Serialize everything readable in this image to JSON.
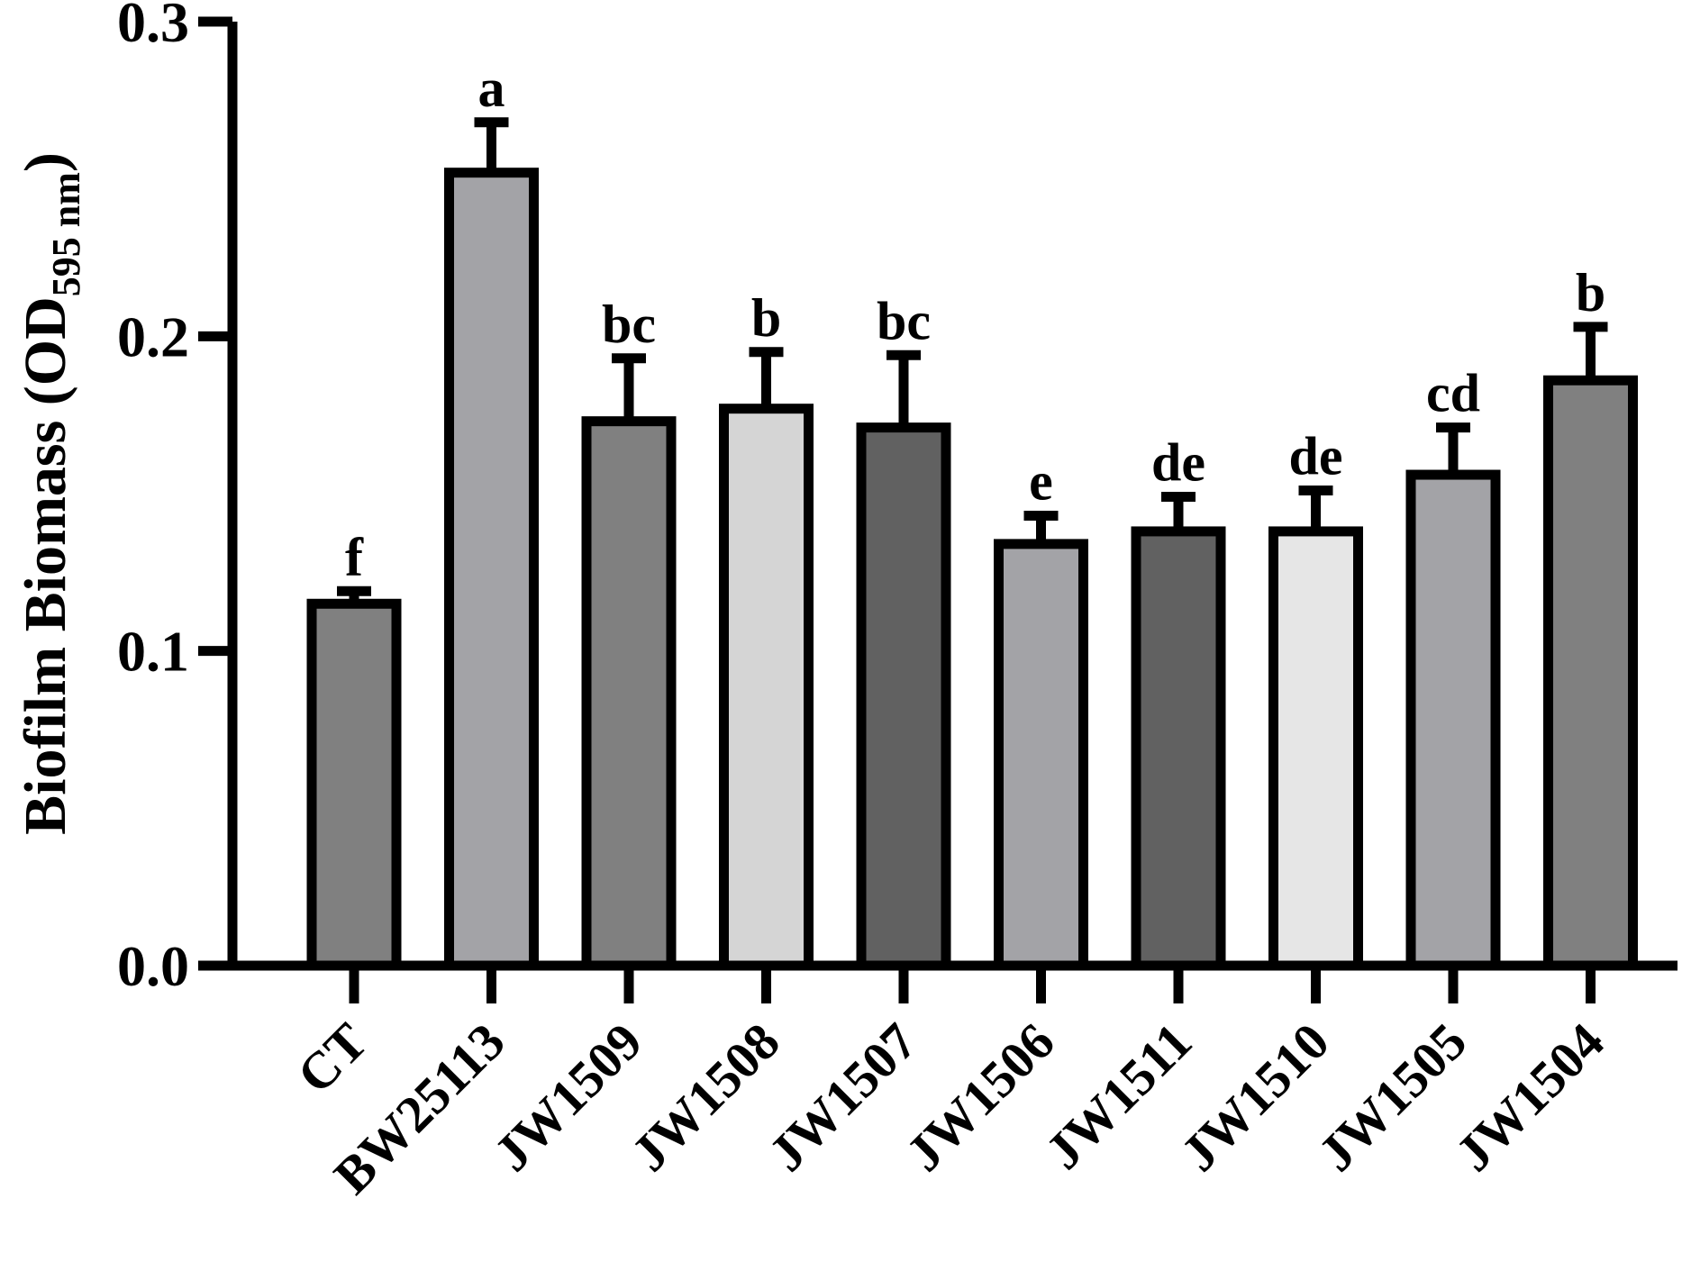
{
  "chart_data": {
    "type": "bar",
    "ylabel": "Biofilm Biomass (OD",
    "ylabel_subscript": "595 nm",
    "ylabel_suffix": ")",
    "xlabel": "",
    "ylim": [
      0,
      0.3
    ],
    "yticks": [
      0.0,
      0.1,
      0.2,
      0.3
    ],
    "ytick_labels": [
      "0.0",
      "0.1",
      "0.2",
      "0.3"
    ],
    "categories": [
      "CT",
      "BW25113",
      "JW1509",
      "JW1508",
      "JW1507",
      "JW1506",
      "JW1511",
      "JW1510",
      "JW1505",
      "JW1504"
    ],
    "values": [
      0.115,
      0.252,
      0.173,
      0.177,
      0.171,
      0.134,
      0.138,
      0.138,
      0.156,
      0.186
    ],
    "errors": [
      0.004,
      0.016,
      0.02,
      0.018,
      0.023,
      0.009,
      0.011,
      0.013,
      0.015,
      0.017
    ],
    "significance_letters": [
      "f",
      "a",
      "bc",
      "b",
      "bc",
      "e",
      "de",
      "de",
      "cd",
      "b"
    ],
    "bar_colors": [
      "#808080",
      "#a3a3a7",
      "#808080",
      "#d5d5d5",
      "#616161",
      "#a3a3a7",
      "#616161",
      "#e6e6e6",
      "#a3a3a7",
      "#808080"
    ],
    "edge_color": "#000000",
    "grid": false,
    "legend": "none"
  }
}
